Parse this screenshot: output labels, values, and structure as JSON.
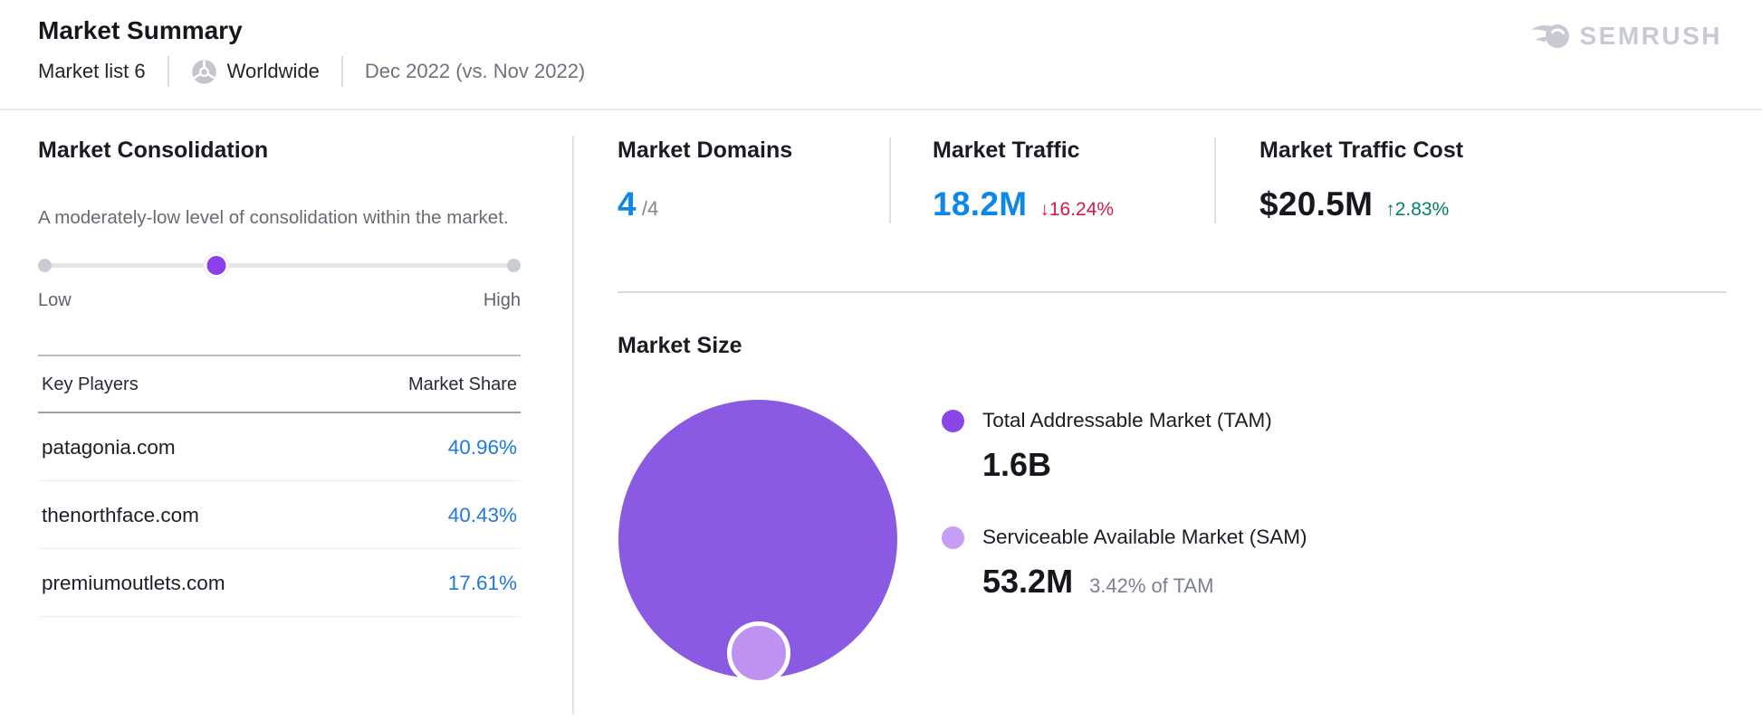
{
  "header": {
    "title": "Market Summary",
    "market_list": "Market list 6",
    "region": "Worldwide",
    "period": "Dec 2022 (vs. Nov 2022)",
    "logo_text": "SEMRUSH"
  },
  "consolidation": {
    "title": "Market Consolidation",
    "description": "A moderately-low level of consolidation within the market.",
    "slider": {
      "low_label": "Low",
      "high_label": "High",
      "value_percent": 37,
      "level": "moderately-low"
    },
    "table": {
      "headers": {
        "players": "Key Players",
        "share": "Market Share"
      },
      "rows": [
        {
          "domain": "patagonia.com",
          "share": "40.96%"
        },
        {
          "domain": "thenorthface.com",
          "share": "40.43%"
        },
        {
          "domain": "premiumoutlets.com",
          "share": "17.61%"
        }
      ]
    }
  },
  "metrics": [
    {
      "label": "Market Domains",
      "value": "4",
      "suffix": "/4"
    },
    {
      "label": "Market Traffic",
      "value": "18.2M",
      "arrow": "↓",
      "delta": "16.24%",
      "direction": "down"
    },
    {
      "label": "Market Traffic Cost",
      "value": "$20.5M",
      "arrow": "↑",
      "delta": "2.83%",
      "direction": "up"
    }
  ],
  "market_size": {
    "title": "Market Size",
    "legend": [
      {
        "label": "Total Addressable Market (TAM)",
        "value": "1.6B",
        "color": "#8b46e6"
      },
      {
        "label": "Serviceable Available Market (SAM)",
        "value": "53.2M",
        "note": "3.42% of TAM",
        "color": "#c79cf5"
      }
    ]
  },
  "chart_data": {
    "type": "bubble",
    "title": "Market Size",
    "series": [
      {
        "name": "Total Addressable Market (TAM)",
        "label": "1.6B",
        "value": 1600000000,
        "color": "#8a5be2"
      },
      {
        "name": "Serviceable Available Market (SAM)",
        "label": "53.2M",
        "value": 53200000,
        "note": "3.42% of TAM",
        "color": "#bf92f2"
      }
    ],
    "layout": "SAM circle nested at bottom of TAM circle, areas proportional to values"
  },
  "colors": {
    "accent_blue": "#0e88e8",
    "link_blue": "#1f78e0",
    "negative_red": "#d31a46",
    "positive_green": "#00816a",
    "slider_purple": "#8b40e8",
    "tam_purple": "#8a5be2",
    "sam_purple": "#bf92f2",
    "logo_gray": "#c7cad0"
  }
}
